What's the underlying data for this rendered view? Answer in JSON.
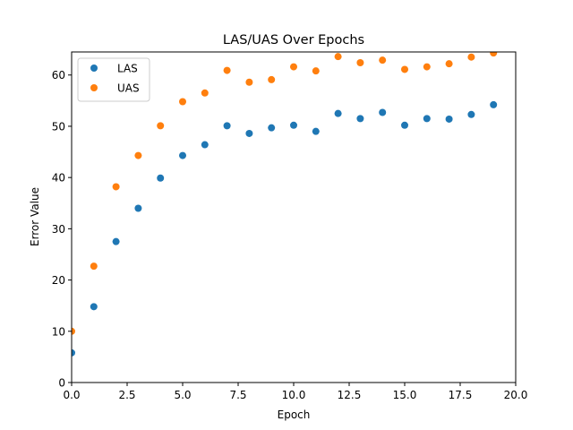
{
  "chart_data": {
    "type": "scatter",
    "title": "LAS/UAS Over Epochs",
    "xlabel": "Epoch",
    "ylabel": "Error Value",
    "xlim": [
      0,
      20
    ],
    "ylim": [
      0,
      64.5
    ],
    "xticks": [
      0,
      2.5,
      5,
      7.5,
      10,
      12.5,
      15,
      17.5,
      20
    ],
    "xtick_labels": [
      "0.0",
      "2.5",
      "5.0",
      "7.5",
      "10.0",
      "12.5",
      "15.0",
      "17.5",
      "20.0"
    ],
    "yticks": [
      0,
      10,
      20,
      30,
      40,
      50,
      60
    ],
    "ytick_labels": [
      "0",
      "10",
      "20",
      "30",
      "40",
      "50",
      "60"
    ],
    "grid": false,
    "legend_position": "top-left",
    "series": [
      {
        "name": "LAS",
        "color": "#1f77b4",
        "x": [
          0,
          1,
          2,
          3,
          4,
          5,
          6,
          7,
          8,
          9,
          10,
          11,
          12,
          13,
          14,
          15,
          16,
          17,
          18,
          19
        ],
        "y": [
          5.8,
          14.8,
          27.5,
          34.0,
          39.9,
          44.3,
          46.4,
          50.1,
          48.6,
          49.7,
          50.2,
          49.0,
          52.5,
          51.5,
          52.7,
          50.2,
          51.5,
          51.4,
          52.3,
          54.2
        ]
      },
      {
        "name": "UAS",
        "color": "#ff7f0e",
        "x": [
          0,
          1,
          2,
          3,
          4,
          5,
          6,
          7,
          8,
          9,
          10,
          11,
          12,
          13,
          14,
          15,
          16,
          17,
          18,
          19
        ],
        "y": [
          10.0,
          22.7,
          38.2,
          44.3,
          50.1,
          54.8,
          56.5,
          60.9,
          58.6,
          59.1,
          61.6,
          60.8,
          63.6,
          62.4,
          62.9,
          61.1,
          61.6,
          62.2,
          63.5,
          64.3
        ]
      }
    ]
  }
}
